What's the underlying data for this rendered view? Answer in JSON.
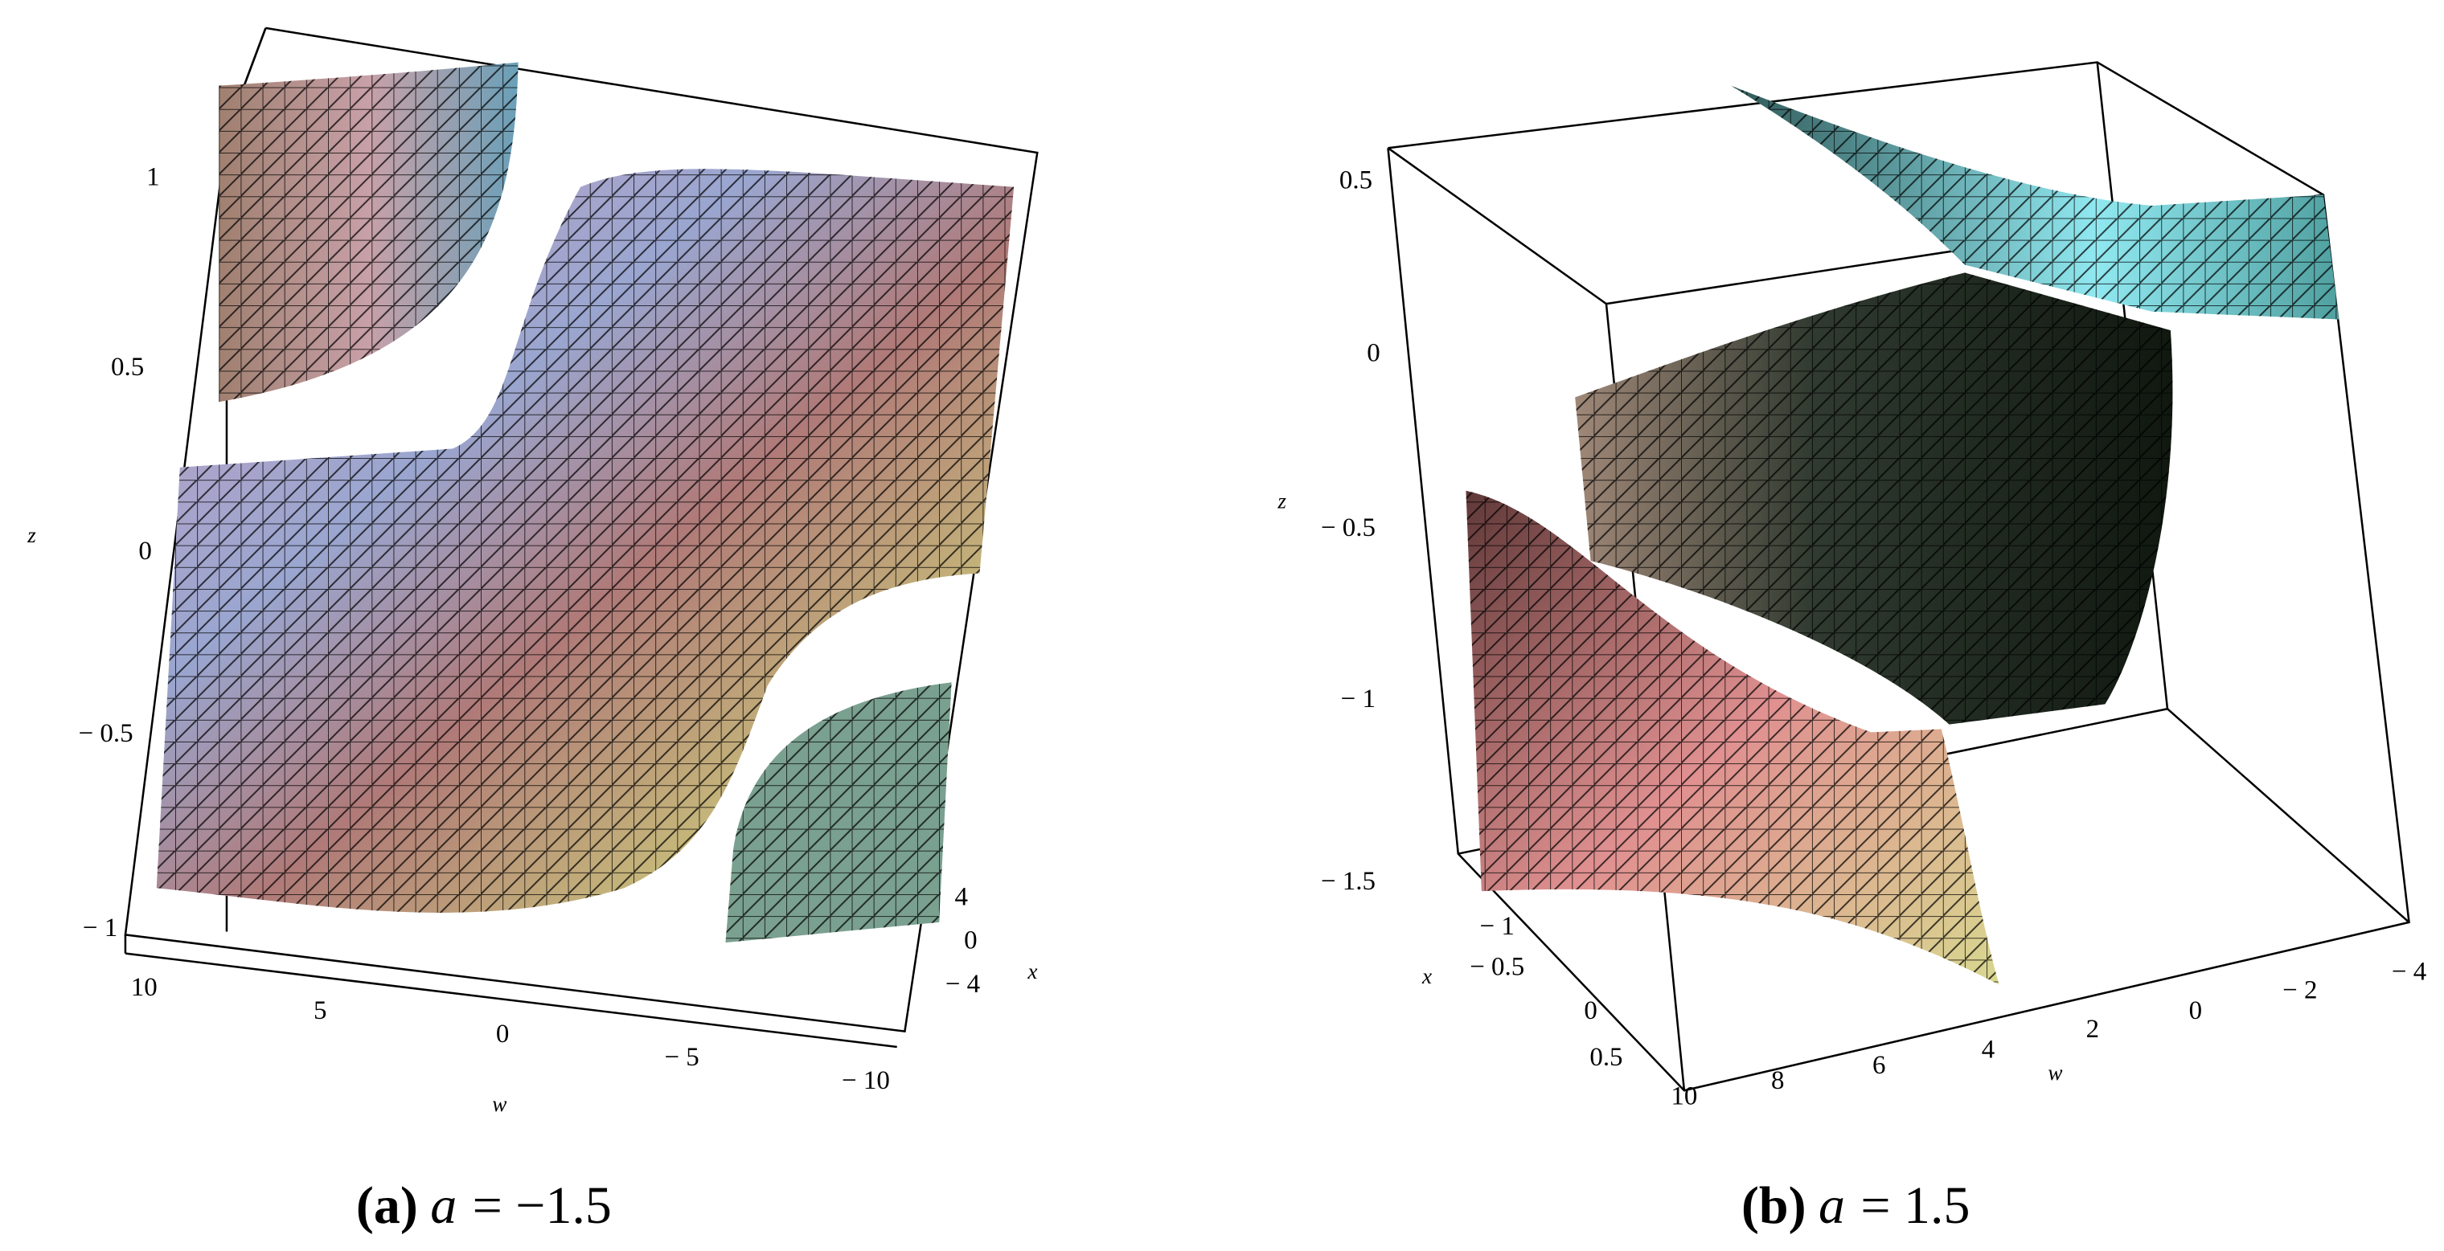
{
  "panels": [
    {
      "axes": {
        "z": {
          "label": "z",
          "ticks": [
            "1",
            "0.5",
            "0",
            "− 0.5",
            "− 1"
          ]
        },
        "w": {
          "label": "w",
          "ticks": [
            "10",
            "5",
            "0",
            "− 5",
            "− 10"
          ]
        },
        "x": {
          "label": "x",
          "ticks": [
            "4",
            "0",
            "− 4"
          ]
        }
      },
      "caption": {
        "label": "(a)",
        "variable": "a",
        "relation": "= −1.5"
      }
    },
    {
      "axes": {
        "z": {
          "label": "z",
          "ticks": [
            "0.5",
            "0",
            "− 0.5",
            "− 1",
            "− 1.5"
          ]
        },
        "w": {
          "label": "w",
          "ticks": [
            "10",
            "8",
            "6",
            "4",
            "2",
            "0",
            "− 2",
            "− 4"
          ]
        },
        "x": {
          "label": "x",
          "ticks": [
            "− 1",
            "− 0.5",
            "0",
            "0.5"
          ]
        }
      },
      "caption": {
        "label": "(b)",
        "variable": "a",
        "relation": "= 1.5"
      }
    }
  ]
}
